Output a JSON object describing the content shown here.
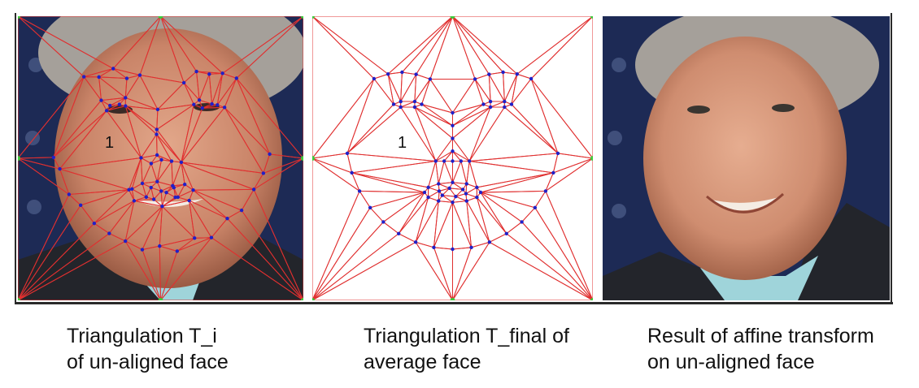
{
  "panels": [
    {
      "id": "unaligned",
      "region_label": "1",
      "caption": [
        "Triangulation T_i",
        "of un-aligned face"
      ]
    },
    {
      "id": "average",
      "region_label": "1",
      "caption": [
        "Triangulation T_final of",
        "average face"
      ]
    },
    {
      "id": "result",
      "caption": [
        "Result of affine transform",
        "on un-aligned face"
      ]
    }
  ],
  "colors": {
    "mesh_edge": "#e03030",
    "landmark_point": "#2020c8",
    "anchor_point": "#3ccc3c",
    "background_navy": "#1d2a55",
    "skin": "#d7997e",
    "hair": "#a5a09a",
    "suit": "#23252b",
    "shirt": "#9fd4da"
  }
}
